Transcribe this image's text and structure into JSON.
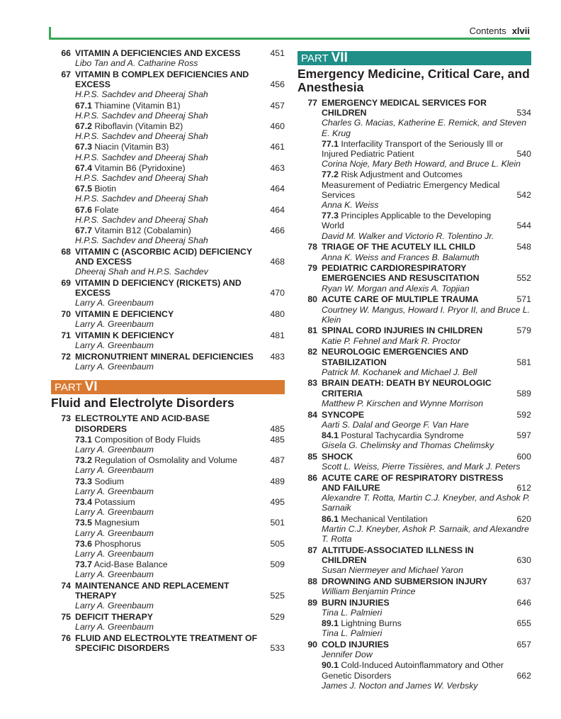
{
  "header": {
    "section": "Contents",
    "page": "xlvii"
  },
  "colors": {
    "rule": "#3aa655",
    "part_vi": "#d97a30",
    "part_vii": "#1f8f88"
  },
  "left": {
    "entries": [
      {
        "num": "66",
        "title": "VITAMIN A DEFICIENCIES AND EXCESS",
        "page": "451",
        "authors": "Libo Tan and A. Catharine Ross",
        "subs": []
      },
      {
        "num": "67",
        "title": "VITAMIN B COMPLEX DEFICIENCIES AND EXCESS",
        "page": "456",
        "authors": "H.P.S. Sachdev and Dheeraj Shah",
        "subs": [
          {
            "num": "67.1",
            "title": "Thiamine (Vitamin B1)",
            "page": "457",
            "authors": "H.P.S. Sachdev and Dheeraj Shah"
          },
          {
            "num": "67.2",
            "title": "Riboflavin (Vitamin B2)",
            "page": "460",
            "authors": "H.P.S. Sachdev and Dheeraj Shah"
          },
          {
            "num": "67.3",
            "title": "Niacin (Vitamin B3)",
            "page": "461",
            "authors": "H.P.S. Sachdev and Dheeraj Shah"
          },
          {
            "num": "67.4",
            "title": "Vitamin B6 (Pyridoxine)",
            "page": "463",
            "authors": "H.P.S. Sachdev and Dheeraj Shah"
          },
          {
            "num": "67.5",
            "title": "Biotin",
            "page": "464",
            "authors": "H.P.S. Sachdev and Dheeraj Shah"
          },
          {
            "num": "67.6",
            "title": "Folate",
            "page": "464",
            "authors": "H.P.S. Sachdev and Dheeraj Shah"
          },
          {
            "num": "67.7",
            "title": "Vitamin B12 (Cobalamin)",
            "page": "466",
            "authors": "H.P.S. Sachdev and Dheeraj Shah"
          }
        ]
      },
      {
        "num": "68",
        "title": "VITAMIN C (ASCORBIC ACID) DEFICIENCY AND EXCESS",
        "page": "468",
        "authors": "Dheeraj Shah and H.P.S. Sachdev",
        "subs": []
      },
      {
        "num": "69",
        "title": "VITAMIN D DEFICIENCY (RICKETS) AND EXCESS",
        "page": "470",
        "authors": "Larry A. Greenbaum",
        "subs": []
      },
      {
        "num": "70",
        "title": "VITAMIN E DEFICIENCY",
        "page": "480",
        "authors": "Larry A. Greenbaum",
        "subs": []
      },
      {
        "num": "71",
        "title": "VITAMIN K DEFICIENCY",
        "page": "481",
        "authors": "Larry A. Greenbaum",
        "subs": []
      },
      {
        "num": "72",
        "title": "MICRONUTRIENT MINERAL DEFICIENCIES",
        "page": "483",
        "authors": "Larry A. Greenbaum",
        "subs": []
      }
    ],
    "part": {
      "label": "PART",
      "numeral": "VI",
      "title": "Fluid and Electrolyte Disorders"
    },
    "part_entries": [
      {
        "num": "73",
        "title": "ELECTROLYTE AND ACID-BASE DISORDERS",
        "page": "485",
        "authors": "",
        "subs": [
          {
            "num": "73.1",
            "title": "Composition of Body Fluids",
            "page": "485",
            "authors": "Larry A. Greenbaum"
          },
          {
            "num": "73.2",
            "title": "Regulation of Osmolality and Volume",
            "page": "487",
            "authors": "Larry A. Greenbaum"
          },
          {
            "num": "73.3",
            "title": "Sodium",
            "page": "489",
            "authors": "Larry A. Greenbaum"
          },
          {
            "num": "73.4",
            "title": "Potassium",
            "page": "495",
            "authors": "Larry A. Greenbaum"
          },
          {
            "num": "73.5",
            "title": "Magnesium",
            "page": "501",
            "authors": "Larry A. Greenbaum"
          },
          {
            "num": "73.6",
            "title": "Phosphorus",
            "page": "505",
            "authors": "Larry A. Greenbaum"
          },
          {
            "num": "73.7",
            "title": "Acid-Base Balance",
            "page": "509",
            "authors": "Larry A. Greenbaum"
          }
        ]
      },
      {
        "num": "74",
        "title": "MAINTENANCE AND REPLACEMENT THERAPY",
        "page": "525",
        "authors": "Larry A. Greenbaum",
        "subs": []
      },
      {
        "num": "75",
        "title": "DEFICIT THERAPY",
        "page": "529",
        "authors": "Larry A. Greenbaum",
        "subs": []
      },
      {
        "num": "76",
        "title": "FLUID AND ELECTROLYTE TREATMENT OF SPECIFIC DISORDERS",
        "page": "533",
        "authors": "",
        "subs": []
      }
    ]
  },
  "right": {
    "part": {
      "label": "PART",
      "numeral": "VII",
      "title": "Emergency Medicine, Critical Care, and Anesthesia"
    },
    "part_entries": [
      {
        "num": "77",
        "title": "EMERGENCY MEDICAL SERVICES FOR CHILDREN",
        "page": "534",
        "authors": "Charles G. Macias, Katherine E. Remick, and Steven E. Krug",
        "subs": [
          {
            "num": "77.1",
            "title": "Interfacility Transport of the Seriously Ill or Injured Pediatric Patient",
            "page": "540",
            "authors": "Corina Noje, Mary Beth Howard, and Bruce L. Klein"
          },
          {
            "num": "77.2",
            "title": "Risk Adjustment and Outcomes Measurement of Pediatric Emergency Medical Services",
            "page": "542",
            "authors": "Anna K. Weiss"
          },
          {
            "num": "77.3",
            "title": "Principles Applicable to the Developing World",
            "page": "544",
            "authors": "David M. Walker and Victorio R. Tolentino Jr."
          }
        ]
      },
      {
        "num": "78",
        "title": "TRIAGE OF THE ACUTELY ILL CHILD",
        "page": "548",
        "authors": "Anna K. Weiss and Frances B. Balamuth",
        "subs": []
      },
      {
        "num": "79",
        "title": "PEDIATRIC CARDIORESPIRATORY EMERGENCIES AND RESUSCITATION",
        "page": "552",
        "authors": "Ryan W. Morgan and Alexis A. Topjian",
        "subs": []
      },
      {
        "num": "80",
        "title": "ACUTE CARE OF MULTIPLE TRAUMA",
        "page": "571",
        "authors": "Courtney W. Mangus, Howard I. Pryor II, and Bruce L. Klein",
        "subs": []
      },
      {
        "num": "81",
        "title": "SPINAL CORD INJURIES IN CHILDREN",
        "page": "579",
        "authors": "Katie P. Fehnel and Mark R. Proctor",
        "subs": []
      },
      {
        "num": "82",
        "title": "NEUROLOGIC EMERGENCIES AND STABILIZATION",
        "page": "581",
        "authors": "Patrick M. Kochanek and Michael J. Bell",
        "subs": []
      },
      {
        "num": "83",
        "title": "BRAIN DEATH: DEATH BY NEUROLOGIC CRITERIA",
        "page": "589",
        "authors": "Matthew P. Kirschen and Wynne Morrison",
        "subs": []
      },
      {
        "num": "84",
        "title": "SYNCOPE",
        "page": "592",
        "authors": "Aarti S. Dalal and George F. Van Hare",
        "subs": [
          {
            "num": "84.1",
            "title": "Postural Tachycardia Syndrome",
            "page": "597",
            "authors": "Gisela G. Chelimsky and Thomas Chelimsky"
          }
        ]
      },
      {
        "num": "85",
        "title": "SHOCK",
        "page": "600",
        "authors": "Scott L. Weiss, Pierre Tissières, and Mark J. Peters",
        "subs": []
      },
      {
        "num": "86",
        "title": "ACUTE CARE OF RESPIRATORY DISTRESS AND FAILURE",
        "page": "612",
        "authors": "Alexandre T. Rotta, Martin C.J. Kneyber, and Ashok P. Sarnaik",
        "subs": [
          {
            "num": "86.1",
            "title": "Mechanical Ventilation",
            "page": "620",
            "authors": "Martin C.J. Kneyber, Ashok P. Sarnaik, and Alexandre T. Rotta"
          }
        ]
      },
      {
        "num": "87",
        "title": "ALTITUDE-ASSOCIATED ILLNESS IN CHILDREN",
        "page": "630",
        "authors": "Susan Niermeyer and Michael Yaron",
        "subs": []
      },
      {
        "num": "88",
        "title": "DROWNING AND SUBMERSION INJURY",
        "page": "637",
        "authors": "William Benjamin Prince",
        "subs": []
      },
      {
        "num": "89",
        "title": "BURN INJURIES",
        "page": "646",
        "authors": "Tina L. Palmieri",
        "subs": [
          {
            "num": "89.1",
            "title": "Lightning Burns",
            "page": "655",
            "authors": "Tina L. Palmieri"
          }
        ]
      },
      {
        "num": "90",
        "title": "COLD INJURIES",
        "page": "657",
        "authors": "Jennifer Dow",
        "subs": [
          {
            "num": "90.1",
            "title": "Cold-Induced Autoinflammatory and Other Genetic Disorders",
            "page": "662",
            "authors": "James J. Nocton and James W. Verbsky"
          }
        ]
      }
    ]
  }
}
